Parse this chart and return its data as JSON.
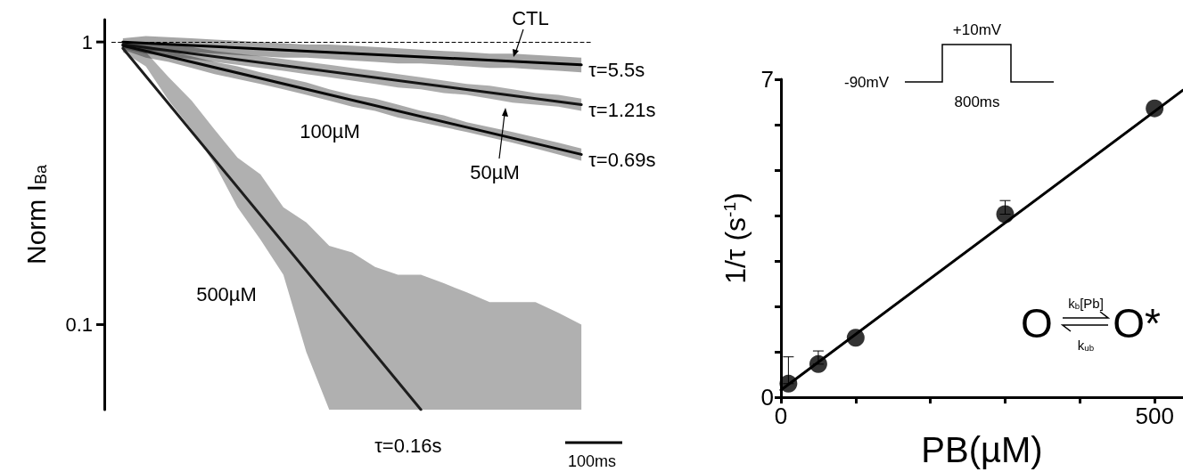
{
  "chart_data": [
    {
      "type": "line",
      "ylabel": "Norm I$_{Ba}$",
      "categories": [
        null,
        null,
        null,
        null,
        null,
        null,
        null,
        null,
        null,
        null,
        null,
        null,
        null,
        null,
        null,
        null,
        null,
        null,
        null,
        null,
        null
      ],
      "log": "y",
      "ylim": [
        0.05,
        1.2
      ],
      "yticks": [
        0.1,
        1
      ],
      "marker": "none",
      "ref_lines": [
        {
          "axis": "y",
          "value": 1,
          "line_style": "dashed"
        }
      ],
      "series": [
        {
          "name": "τ=5.5s",
          "color": "#000000",
          "values": [
            1.0,
            null,
            null,
            null,
            null,
            null,
            null,
            null,
            null,
            null,
            null,
            null,
            null,
            null,
            null,
            null,
            null,
            null,
            null,
            null,
            0.83
          ],
          "upper": [
            1.03,
            1.05,
            1.04,
            1.03,
            1.02,
            1.01,
            1.0,
            0.99,
            0.98,
            0.98,
            0.97,
            0.96,
            0.95,
            0.94,
            0.93,
            0.92,
            0.91,
            0.91,
            0.9,
            0.89,
            0.88
          ],
          "lower": [
            0.97,
            0.93,
            0.93,
            0.92,
            0.91,
            0.9,
            0.89,
            0.88,
            0.88,
            0.87,
            0.86,
            0.85,
            0.84,
            0.84,
            0.83,
            0.82,
            0.81,
            0.81,
            0.8,
            0.79,
            0.78
          ]
        },
        {
          "name": "τ=1.21s",
          "color": "#141414",
          "values": [
            0.98,
            null,
            null,
            null,
            null,
            null,
            null,
            null,
            null,
            null,
            null,
            null,
            null,
            null,
            null,
            null,
            null,
            null,
            null,
            null,
            0.6
          ],
          "upper": [
            1.0,
            1.0,
            0.98,
            0.96,
            0.93,
            0.91,
            0.89,
            0.87,
            0.85,
            0.83,
            0.81,
            0.79,
            0.77,
            0.75,
            0.73,
            0.71,
            0.7,
            0.68,
            0.66,
            0.65,
            0.63
          ],
          "lower": [
            0.95,
            0.91,
            0.89,
            0.87,
            0.85,
            0.83,
            0.81,
            0.79,
            0.77,
            0.75,
            0.73,
            0.71,
            0.69,
            0.68,
            0.66,
            0.65,
            0.63,
            0.61,
            0.6,
            0.59,
            0.57
          ]
        },
        {
          "name": "τ=0.69s",
          "color": "#0a0a0a",
          "values": [
            0.97,
            null,
            null,
            null,
            null,
            null,
            null,
            null,
            null,
            null,
            null,
            null,
            null,
            null,
            null,
            null,
            null,
            null,
            null,
            null,
            0.4
          ],
          "upper": [
            0.99,
            0.97,
            0.93,
            0.89,
            0.85,
            0.82,
            0.78,
            0.75,
            0.72,
            0.68,
            0.65,
            0.63,
            0.6,
            0.57,
            0.55,
            0.52,
            0.5,
            0.48,
            0.46,
            0.44,
            0.42
          ],
          "lower": [
            0.94,
            0.88,
            0.85,
            0.81,
            0.77,
            0.74,
            0.71,
            0.68,
            0.65,
            0.62,
            0.59,
            0.57,
            0.54,
            0.52,
            0.5,
            0.48,
            0.46,
            0.44,
            0.42,
            0.4,
            0.38
          ]
        },
        {
          "name": "τ=0.16s",
          "color": "#1e1e1e",
          "values": [
            0.95,
            null,
            null,
            null,
            null,
            null,
            null,
            null,
            null,
            null,
            null,
            null,
            null,
            0.05,
            null,
            null,
            null,
            null,
            null,
            null,
            null
          ],
          "upper": [
            0.97,
            0.92,
            0.75,
            0.62,
            0.49,
            0.39,
            0.34,
            0.26,
            0.23,
            0.19,
            0.18,
            0.16,
            0.15,
            0.15,
            0.14,
            0.13,
            0.12,
            0.12,
            0.12,
            0.11,
            0.1
          ],
          "lower": [
            0.92,
            0.82,
            0.62,
            0.49,
            0.37,
            0.26,
            0.2,
            0.15,
            0.08,
            0.05,
            0.05,
            0.05,
            0.05,
            0.05,
            0.05,
            0.05,
            0.05,
            0.05,
            0.05,
            0.05,
            0.05
          ]
        }
      ],
      "annotations": [
        "CTL",
        "50µM",
        "100µM",
        "500µM",
        "100ms"
      ]
    },
    {
      "type": "scatter",
      "xlabel": "PB(µM)",
      "ylabel": "1/τ (s$^{-1}$)",
      "xlim": [
        0,
        538
      ],
      "xticks": [
        0,
        {
          "value": 100,
          "label": null
        },
        {
          "value": 200,
          "label": null
        },
        {
          "value": 300,
          "label": null
        },
        {
          "value": 400,
          "label": null
        },
        500
      ],
      "ylim": [
        0,
        7
      ],
      "yticks": [
        0,
        {
          "value": 1,
          "label": null
        },
        {
          "value": 2,
          "label": null
        },
        {
          "value": 3,
          "label": null
        },
        {
          "value": 4,
          "label": null
        },
        {
          "value": 5,
          "label": null
        },
        {
          "value": 6,
          "label": null
        },
        7
      ],
      "series": [
        {
          "marker": "circle",
          "color": "#000000",
          "x": [
            10,
            50,
            100,
            300,
            500
          ],
          "values": [
            0.3,
            0.73,
            1.31,
            4.03,
            6.36
          ],
          "errors": [
            [
              0.3,
              0.89
            ],
            [
              0.73,
              1.02
            ],
            null,
            [
              4.03,
              4.33
            ],
            null
          ]
        },
        {
          "type": "line",
          "marker": "none",
          "color": "#000000",
          "x": [
            0,
            538
          ],
          "values": [
            0.16,
            6.76
          ]
        }
      ],
      "annotations": [
        "+10mV",
        "-90mV",
        "800ms",
        "O",
        "k$_{b}$[Pb]",
        "k$_{ub}$",
        "O*"
      ]
    }
  ]
}
